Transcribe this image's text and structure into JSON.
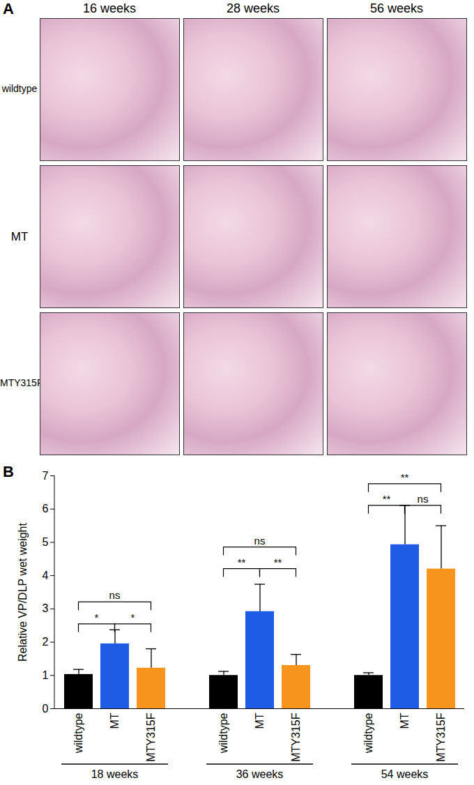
{
  "panel_a": {
    "panel_label": "A",
    "columns": [
      "16 weeks",
      "28 weeks",
      "56 weeks"
    ],
    "rows": [
      "wildtype",
      "MT",
      "MTY315F"
    ]
  },
  "chart_data": {
    "type": "bar",
    "panel_label": "B",
    "y_label": "Relative VP/DLP wet weight",
    "ylim": [
      0,
      7
    ],
    "yticks": [
      0,
      1,
      2,
      3,
      4,
      5,
      6,
      7
    ],
    "categories": [
      "wildtype",
      "MT",
      "MTY315F"
    ],
    "colors": [
      "#000000",
      "#1f5ce6",
      "#f7941d"
    ],
    "groups": [
      {
        "name": "18 weeks",
        "values": [
          1.03,
          1.95,
          1.22
        ],
        "errors": [
          0.15,
          0.42,
          0.58
        ]
      },
      {
        "name": "36 weeks",
        "values": [
          1.0,
          2.92,
          1.3
        ],
        "errors": [
          0.12,
          0.82,
          0.33
        ]
      },
      {
        "name": "54 weeks",
        "values": [
          1.0,
          4.93,
          4.2
        ],
        "errors": [
          0.08,
          1.18,
          1.3
        ]
      }
    ],
    "significance": [
      {
        "group": "18 weeks",
        "from": "wildtype",
        "to": "MT",
        "label": "*",
        "y": 2.54
      },
      {
        "group": "18 weeks",
        "from": "MT",
        "to": "MTY315F",
        "label": "*",
        "y": 2.54
      },
      {
        "group": "18 weeks",
        "from": "wildtype",
        "to": "MTY315F",
        "label": "ns",
        "y": 3.2
      },
      {
        "group": "36 weeks",
        "from": "wildtype",
        "to": "MT",
        "label": "**",
        "y": 4.2
      },
      {
        "group": "36 weeks",
        "from": "MT",
        "to": "MTY315F",
        "label": "**",
        "y": 4.2
      },
      {
        "group": "36 weeks",
        "from": "wildtype",
        "to": "MTY315F",
        "label": "ns",
        "y": 4.85
      },
      {
        "group": "54 weeks",
        "from": "wildtype",
        "to": "MT",
        "label": "**",
        "y": 6.1
      },
      {
        "group": "54 weeks",
        "from": "MT",
        "to": "MTY315F",
        "label": "ns",
        "y": 6.1
      },
      {
        "group": "54 weeks",
        "from": "wildtype",
        "to": "MTY315F",
        "label": "**",
        "y": 6.75
      }
    ]
  }
}
